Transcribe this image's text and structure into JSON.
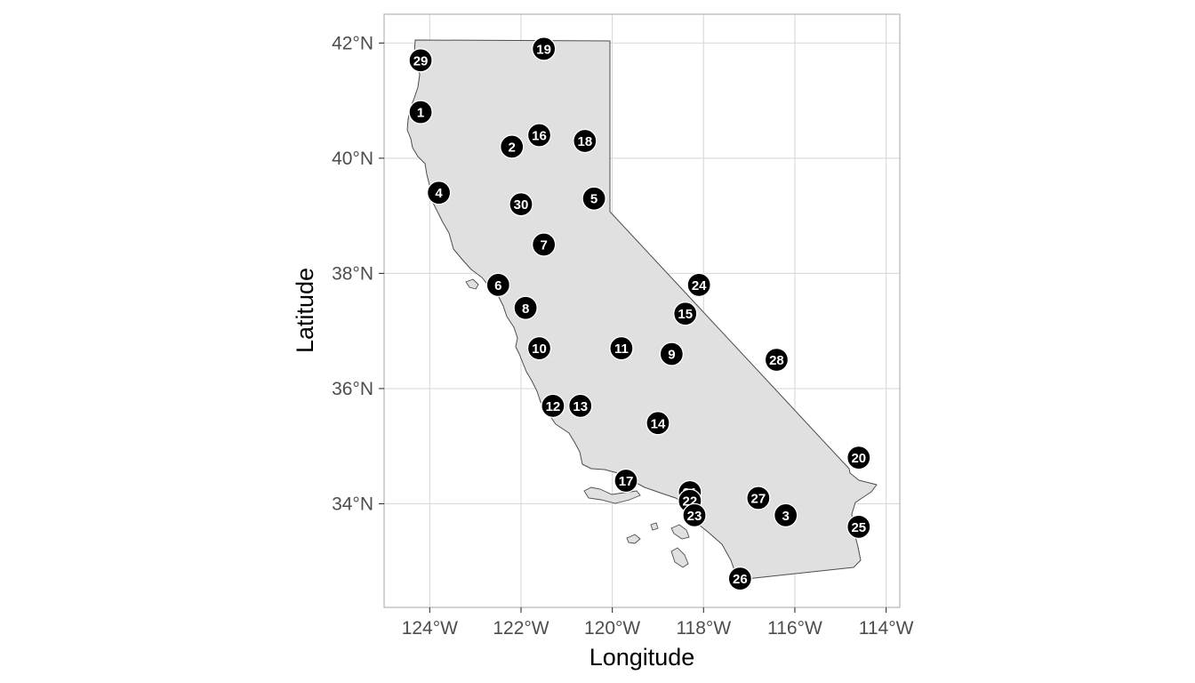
{
  "map": {
    "x_axis_title": "Longitude",
    "y_axis_title": "Latitude",
    "x_ticks": [
      {
        "value": -124,
        "label": "124°W"
      },
      {
        "value": -122,
        "label": "122°W"
      },
      {
        "value": -120,
        "label": "120°W"
      },
      {
        "value": -118,
        "label": "118°W"
      },
      {
        "value": -116,
        "label": "116°W"
      },
      {
        "value": -114,
        "label": "114°W"
      }
    ],
    "y_ticks": [
      {
        "value": 34,
        "label": "34°N"
      },
      {
        "value": 36,
        "label": "36°N"
      },
      {
        "value": 38,
        "label": "38°N"
      },
      {
        "value": 40,
        "label": "40°N"
      },
      {
        "value": 42,
        "label": "42°N"
      }
    ],
    "lon_range": [
      -125,
      -113.7
    ],
    "lat_range": [
      32.2,
      42.5
    ],
    "state_fill": "#e0e0e0",
    "marker_color": "#000000",
    "markers": [
      {
        "label": "1",
        "lon": -124.2,
        "lat": 40.8
      },
      {
        "label": "2",
        "lon": -122.2,
        "lat": 40.2
      },
      {
        "label": "3",
        "lon": -116.2,
        "lat": 33.8
      },
      {
        "label": "4",
        "lon": -123.8,
        "lat": 39.4
      },
      {
        "label": "5",
        "lon": -120.4,
        "lat": 39.3
      },
      {
        "label": "6",
        "lon": -122.5,
        "lat": 37.8
      },
      {
        "label": "7",
        "lon": -121.5,
        "lat": 38.5
      },
      {
        "label": "8",
        "lon": -121.9,
        "lat": 37.4
      },
      {
        "label": "9",
        "lon": -118.7,
        "lat": 36.6
      },
      {
        "label": "10",
        "lon": -121.6,
        "lat": 36.7
      },
      {
        "label": "11",
        "lon": -119.8,
        "lat": 36.7
      },
      {
        "label": "12",
        "lon": -121.3,
        "lat": 35.7
      },
      {
        "label": "13",
        "lon": -120.7,
        "lat": 35.7
      },
      {
        "label": "14",
        "lon": -119.0,
        "lat": 35.4
      },
      {
        "label": "15",
        "lon": -118.4,
        "lat": 37.3
      },
      {
        "label": "16",
        "lon": -121.6,
        "lat": 40.4
      },
      {
        "label": "17",
        "lon": -119.7,
        "lat": 34.4
      },
      {
        "label": "18",
        "lon": -120.6,
        "lat": 40.3
      },
      {
        "label": "19",
        "lon": -121.5,
        "lat": 41.9
      },
      {
        "label": "20",
        "lon": -114.6,
        "lat": 34.8
      },
      {
        "label": "21",
        "lon": -118.3,
        "lat": 34.2
      },
      {
        "label": "22",
        "lon": -118.3,
        "lat": 34.05
      },
      {
        "label": "23",
        "lon": -118.2,
        "lat": 33.8
      },
      {
        "label": "24",
        "lon": -118.1,
        "lat": 37.8
      },
      {
        "label": "25",
        "lon": -114.6,
        "lat": 33.6
      },
      {
        "label": "26",
        "lon": -117.2,
        "lat": 32.7
      },
      {
        "label": "27",
        "lon": -116.8,
        "lat": 34.1
      },
      {
        "label": "28",
        "lon": -116.4,
        "lat": 36.5
      },
      {
        "label": "29",
        "lon": -124.2,
        "lat": 41.7
      },
      {
        "label": "30",
        "lon": -122.0,
        "lat": 39.2
      }
    ]
  }
}
